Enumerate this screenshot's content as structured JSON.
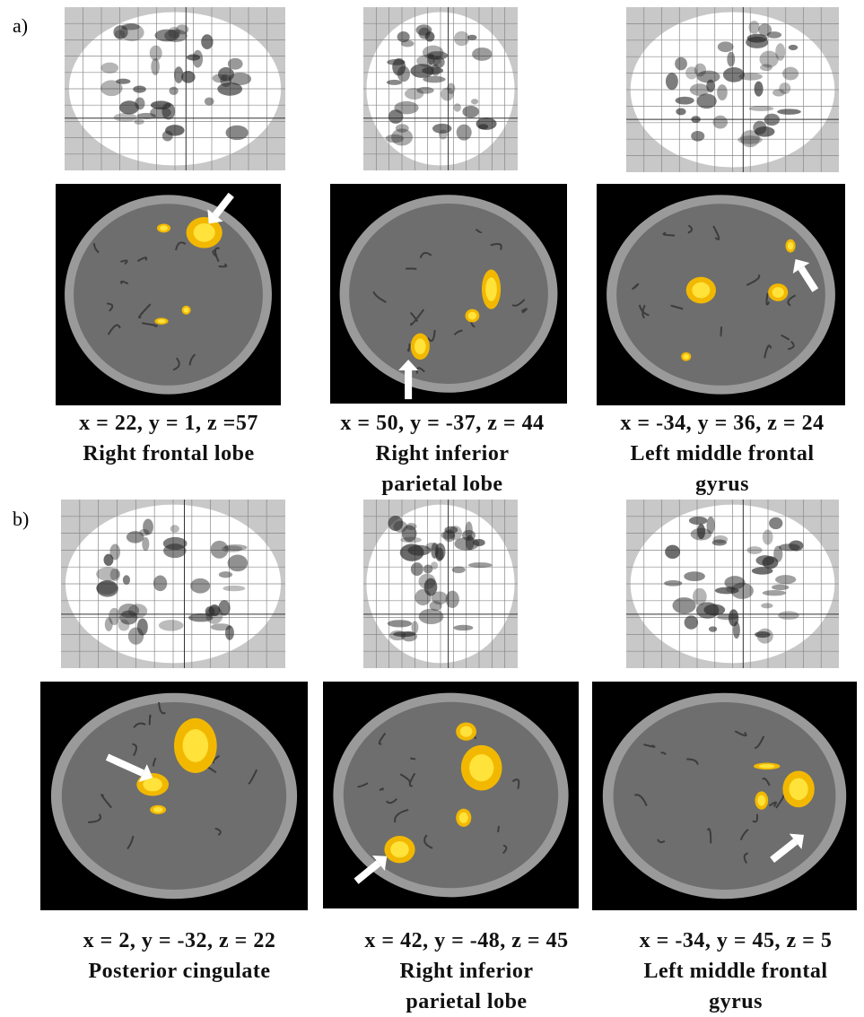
{
  "panels": [
    {
      "label": "a)",
      "images": [
        {
          "coords": "x = 22, y = 1, z =57",
          "region": [
            "Right frontal lobe"
          ]
        },
        {
          "coords": "x = 50, y = -37, z = 44",
          "region": [
            "Right inferior",
            "parietal lobe"
          ]
        },
        {
          "coords": "x = -34, y = 36, z = 24",
          "region": [
            "Left middle frontal",
            "gyrus"
          ]
        }
      ]
    },
    {
      "label": "b)",
      "images": [
        {
          "coords": "x = 2, y = -32, z = 22",
          "region": [
            "Posterior cingulate"
          ]
        },
        {
          "coords": "x = 42, y = -48, z = 45",
          "region": [
            "Right inferior",
            "parietal lobe"
          ]
        },
        {
          "coords": "x = -34, y = 45, z = 5",
          "region": [
            "Left middle frontal",
            "gyrus"
          ]
        }
      ]
    }
  ]
}
